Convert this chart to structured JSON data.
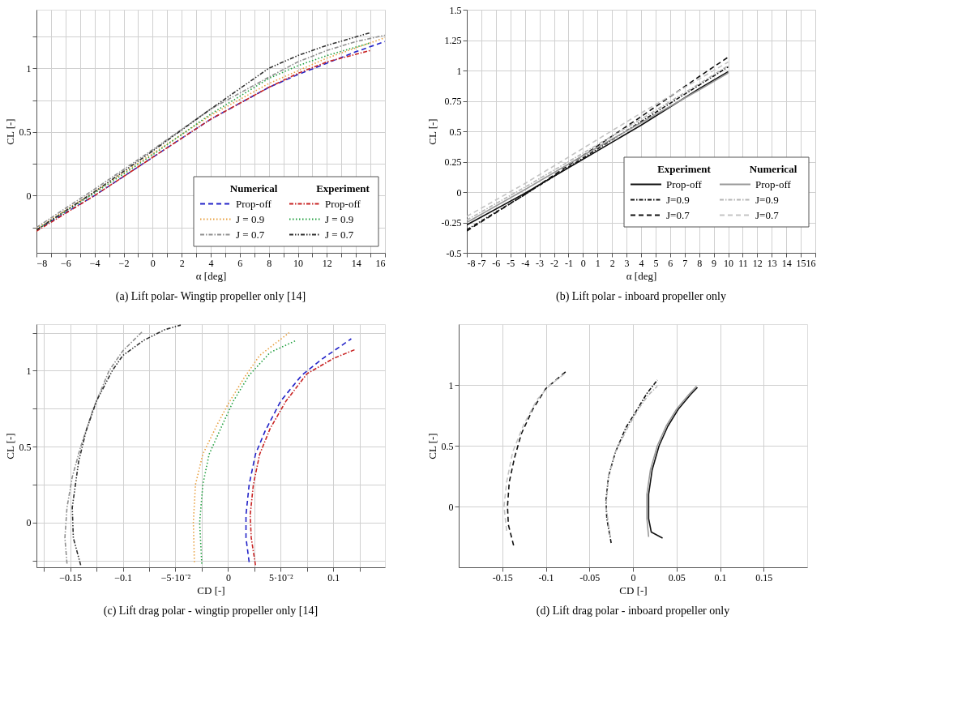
{
  "chart_data": [
    {
      "type": "line",
      "title": "(a) Lift polar- Wingtip propeller only [14]",
      "xlabel": "α [deg]",
      "ylabel": "CL [-]",
      "xlim": [
        -8,
        16
      ],
      "ylim": [
        -0.45,
        1.46
      ],
      "xticks": [
        {
          "value": -8,
          "label": "−8"
        },
        {
          "value": -7,
          "label": null
        },
        {
          "value": -6,
          "label": "−6"
        },
        {
          "value": -5,
          "label": null
        },
        {
          "value": -4,
          "label": "−4"
        },
        {
          "value": -3,
          "label": null
        },
        {
          "value": -2,
          "label": "−2"
        },
        {
          "value": -1,
          "label": null
        },
        0,
        {
          "value": 1,
          "label": null
        },
        2,
        {
          "value": 3,
          "label": null
        },
        4,
        {
          "value": 5,
          "label": null
        },
        6,
        {
          "value": 7,
          "label": null
        },
        8,
        {
          "value": 9,
          "label": null
        },
        10,
        {
          "value": 11,
          "label": null
        },
        12,
        {
          "value": 13,
          "label": null
        },
        14,
        {
          "value": 15,
          "label": null
        },
        16
      ],
      "yticks": [
        {
          "value": -0.25,
          "label": null
        },
        0,
        {
          "value": 0.25,
          "label": null
        },
        0.5,
        {
          "value": 0.75,
          "label": null
        },
        1,
        {
          "value": 1.25,
          "label": null
        }
      ],
      "grid": true,
      "legend": "bottom right",
      "annotations": [
        "Numerical",
        "Experiment"
      ],
      "series": [
        {
          "name": "Prop-off",
          "color": "#2323c8",
          "line_style": "dashed",
          "x": [
            -8,
            -4,
            0,
            4,
            8,
            10,
            12,
            14,
            16
          ],
          "values": [
            -0.27,
            0.0,
            0.3,
            0.6,
            0.85,
            0.95,
            1.04,
            1.13,
            1.21
          ]
        },
        {
          "name": "J = 0.9",
          "color": "#e8a040",
          "line_style": "dotted",
          "x": [
            -8,
            -4,
            0,
            4,
            8,
            10,
            12,
            14,
            16
          ],
          "values": [
            -0.26,
            0.03,
            0.33,
            0.63,
            0.88,
            0.98,
            1.08,
            1.16,
            1.24
          ]
        },
        {
          "name": "J = 0.7",
          "color": "#909090",
          "line_style": "dashdot",
          "x": [
            -8,
            -4,
            0,
            4,
            8,
            10,
            12,
            14,
            16
          ],
          "values": [
            -0.25,
            0.05,
            0.36,
            0.68,
            0.93,
            1.05,
            1.14,
            1.21,
            1.26
          ]
        },
        {
          "name": "Prop-off",
          "color": "#c82323",
          "line_style": "dashdot",
          "x": [
            -8,
            -4,
            0,
            4,
            8,
            10,
            12,
            15
          ],
          "values": [
            -0.28,
            0.0,
            0.3,
            0.6,
            0.85,
            0.96,
            1.05,
            1.14
          ]
        },
        {
          "name": "J = 0.9",
          "color": "#22a040",
          "line_style": "dotted",
          "x": [
            -8,
            -4,
            0,
            4,
            8,
            10,
            12,
            15
          ],
          "values": [
            -0.27,
            0.02,
            0.32,
            0.64,
            0.92,
            1.02,
            1.1,
            1.2
          ]
        },
        {
          "name": "J = 0.7",
          "color": "#303030",
          "line_style": "dashdotdot",
          "x": [
            -8,
            -4,
            0,
            4,
            8,
            10,
            12,
            15
          ],
          "values": [
            -0.27,
            0.03,
            0.35,
            0.68,
            1.0,
            1.1,
            1.18,
            1.28
          ]
        }
      ]
    },
    {
      "type": "line",
      "title": "(b) Lift polar - inboard propeller only",
      "xlabel": "α [deg]",
      "ylabel": "CL [-]",
      "xlim": [
        -8,
        16
      ],
      "ylim": [
        -0.5,
        1.5
      ],
      "xticks": [
        -8,
        -7,
        -6,
        -5,
        -4,
        -3,
        -2,
        -1,
        0,
        1,
        2,
        3,
        4,
        5,
        6,
        7,
        8,
        9,
        10,
        11,
        12,
        13,
        14,
        15,
        16
      ],
      "yticks": [
        -0.5,
        -0.25,
        0,
        0.25,
        0.5,
        0.75,
        1,
        1.25,
        1.5
      ],
      "grid": true,
      "legend": "right",
      "annotations": [
        "Experiment",
        "Numerical"
      ],
      "series": [
        {
          "name": "Prop-off",
          "color": "#111111",
          "line_style": "solid",
          "x": [
            -8,
            -4,
            0,
            4,
            8,
            10
          ],
          "values": [
            -0.27,
            -0.01,
            0.27,
            0.55,
            0.85,
            0.99
          ]
        },
        {
          "name": "J=0.9",
          "color": "#111111",
          "line_style": "dashdot",
          "x": [
            -8,
            -4,
            0,
            4,
            8,
            10
          ],
          "values": [
            -0.31,
            -0.02,
            0.28,
            0.58,
            0.88,
            1.03
          ]
        },
        {
          "name": "J=0.7",
          "color": "#111111",
          "line_style": "dashed",
          "x": [
            -8,
            -4,
            0,
            4,
            8,
            10
          ],
          "values": [
            -0.32,
            -0.02,
            0.3,
            0.62,
            0.95,
            1.11
          ]
        },
        {
          "name": "Prop-off",
          "color": "#999999",
          "line_style": "solid",
          "x": [
            -8,
            -4,
            0,
            4,
            8,
            10
          ],
          "values": [
            -0.25,
            0.02,
            0.3,
            0.57,
            0.84,
            0.98
          ]
        },
        {
          "name": "J=0.9",
          "color": "#b4b4b4",
          "line_style": "dashdot",
          "x": [
            -8,
            -4,
            0,
            4,
            8,
            10
          ],
          "values": [
            -0.23,
            0.04,
            0.32,
            0.6,
            0.89,
            1.04
          ]
        },
        {
          "name": "J=0.7",
          "color": "#c4c4c4",
          "line_style": "dashed",
          "x": [
            -8,
            -4,
            0,
            4,
            8,
            10
          ],
          "values": [
            -0.2,
            0.07,
            0.36,
            0.65,
            0.93,
            1.07
          ]
        }
      ]
    },
    {
      "type": "line",
      "title": "(c) Lift drag polar - wingtip propeller only [14]",
      "xlabel": "CD [-]",
      "ylabel": "CL [-]",
      "xlim": [
        -0.182,
        0.149
      ],
      "ylim": [
        -0.294,
        1.306
      ],
      "xticks": [
        {
          "value": -0.175,
          "label": null
        },
        {
          "value": -0.15,
          "label": "−0.15"
        },
        {
          "value": -0.125,
          "label": null
        },
        {
          "value": -0.1,
          "label": "−0.1"
        },
        {
          "value": -0.075,
          "label": null
        },
        {
          "value": -0.05,
          "label": "−5·10⁻²"
        },
        {
          "value": -0.025,
          "label": null
        },
        0,
        {
          "value": 0.025,
          "label": null
        },
        {
          "value": 0.05,
          "label": "5·10⁻²"
        },
        {
          "value": 0.075,
          "label": null
        },
        0.1,
        {
          "value": 0.125,
          "label": null
        }
      ],
      "yticks": [
        {
          "value": -0.25,
          "label": null
        },
        0,
        {
          "value": 0.25,
          "label": null
        },
        0.5,
        {
          "value": 0.75,
          "label": null
        },
        1,
        {
          "value": 1.25,
          "label": null
        }
      ],
      "grid": true,
      "series": [
        {
          "color": "#2323c8",
          "line_style": "dashed",
          "x": [
            0.02,
            0.017,
            0.017,
            0.02,
            0.026,
            0.035,
            0.05,
            0.07,
            0.09,
            0.117
          ],
          "values": [
            -0.26,
            -0.1,
            0.05,
            0.25,
            0.45,
            0.6,
            0.8,
            0.97,
            1.08,
            1.21
          ]
        },
        {
          "color": "#e8a040",
          "line_style": "dotted",
          "x": [
            -0.032,
            -0.033,
            -0.031,
            -0.024,
            -0.01,
            0.0,
            0.015,
            0.03,
            0.058
          ],
          "values": [
            -0.26,
            0.0,
            0.25,
            0.45,
            0.65,
            0.78,
            0.95,
            1.1,
            1.25
          ]
        },
        {
          "color": "#909090",
          "line_style": "dashdot",
          "x": [
            -0.153,
            -0.155,
            -0.153,
            -0.148,
            -0.14,
            -0.128,
            -0.113,
            -0.1,
            -0.081
          ],
          "values": [
            -0.27,
            -0.1,
            0.1,
            0.3,
            0.5,
            0.75,
            1.0,
            1.13,
            1.26
          ]
        },
        {
          "color": "#c82323",
          "line_style": "dashdot",
          "x": [
            0.026,
            0.022,
            0.021,
            0.024,
            0.03,
            0.04,
            0.055,
            0.075,
            0.1,
            0.121
          ],
          "values": [
            -0.28,
            -0.1,
            0.05,
            0.25,
            0.45,
            0.62,
            0.8,
            0.98,
            1.08,
            1.14
          ]
        },
        {
          "color": "#22a040",
          "line_style": "dotted",
          "x": [
            -0.025,
            -0.027,
            -0.024,
            -0.018,
            -0.005,
            0.005,
            0.02,
            0.04,
            0.065
          ],
          "values": [
            -0.27,
            0.0,
            0.25,
            0.45,
            0.65,
            0.8,
            0.97,
            1.12,
            1.2
          ]
        },
        {
          "color": "#303030",
          "line_style": "dashdotdot",
          "x": [
            -0.14,
            -0.147,
            -0.148,
            -0.142,
            -0.135,
            -0.125,
            -0.11,
            -0.1,
            -0.08,
            -0.06,
            -0.045
          ],
          "values": [
            -0.28,
            -0.1,
            0.1,
            0.4,
            0.6,
            0.8,
            1.0,
            1.1,
            1.2,
            1.27,
            1.3
          ]
        }
      ]
    },
    {
      "type": "line",
      "title": "(d) Lift drag polar - inboard propeller only",
      "xlabel": "CD [-]",
      "ylabel": "CL [-]",
      "xlim": [
        -0.2,
        0.2
      ],
      "ylim": [
        -0.5,
        1.5
      ],
      "xticks": [
        -0.15,
        -0.1,
        -0.05,
        0,
        0.05,
        0.1,
        0.15
      ],
      "yticks": [
        0,
        0.5,
        1
      ],
      "grid": true,
      "series": [
        {
          "color": "#111111",
          "line_style": "solid",
          "x": [
            0.034,
            0.021,
            0.018,
            0.018,
            0.022,
            0.03,
            0.04,
            0.052,
            0.066,
            0.074
          ],
          "values": [
            -0.26,
            -0.21,
            -0.1,
            0.1,
            0.3,
            0.5,
            0.66,
            0.8,
            0.92,
            0.98
          ]
        },
        {
          "color": "#111111",
          "line_style": "dashdot",
          "x": [
            -0.025,
            -0.03,
            -0.031,
            -0.028,
            -0.02,
            -0.008,
            0.005,
            0.016,
            0.028
          ],
          "values": [
            -0.3,
            -0.1,
            0.05,
            0.25,
            0.45,
            0.65,
            0.8,
            0.93,
            1.04
          ]
        },
        {
          "color": "#111111",
          "line_style": "dashed",
          "x": [
            -0.137,
            -0.143,
            -0.144,
            -0.142,
            -0.136,
            -0.128,
            -0.115,
            -0.1,
            -0.077
          ],
          "values": [
            -0.32,
            -0.15,
            0.0,
            0.2,
            0.4,
            0.6,
            0.8,
            0.97,
            1.11
          ]
        },
        {
          "color": "#999999",
          "line_style": "solid",
          "x": [
            0.018,
            0.016,
            0.016,
            0.02,
            0.028,
            0.038,
            0.05,
            0.064,
            0.073
          ],
          "values": [
            -0.25,
            -0.1,
            0.1,
            0.3,
            0.5,
            0.66,
            0.8,
            0.92,
            0.99
          ]
        },
        {
          "color": "#b4b4b4",
          "line_style": "dashdot",
          "x": [
            -0.026,
            -0.031,
            -0.028,
            -0.02,
            -0.006,
            0.006,
            0.018,
            0.028
          ],
          "values": [
            -0.25,
            0.0,
            0.25,
            0.45,
            0.65,
            0.8,
            0.92,
            0.99
          ]
        },
        {
          "color": "#c4c4c4",
          "line_style": "dashed",
          "x": [
            -0.145,
            -0.148,
            -0.145,
            -0.138,
            -0.125,
            -0.11,
            -0.095,
            -0.077
          ],
          "values": [
            -0.2,
            0.0,
            0.2,
            0.45,
            0.68,
            0.88,
            1.0,
            1.1
          ]
        }
      ]
    }
  ]
}
